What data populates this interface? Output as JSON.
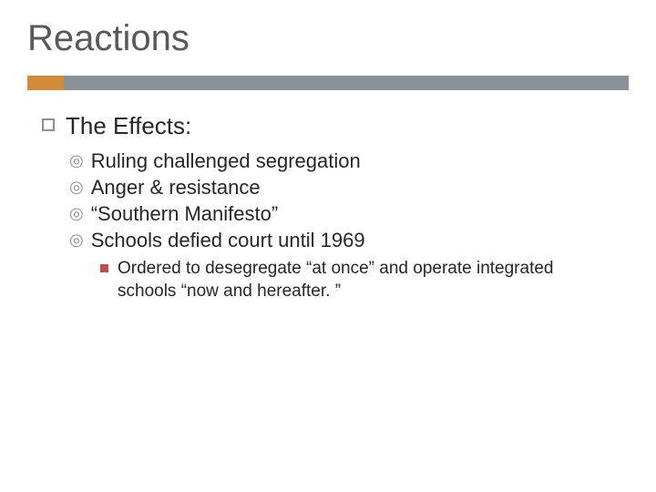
{
  "slide": {
    "title": "Reactions",
    "colors": {
      "accent_orange": "#d38b3a",
      "accent_gray": "#8a9299",
      "title_color": "#595959",
      "text_color": "#262626",
      "level3_bullet": "#c0504d",
      "background": "#ffffff"
    },
    "typography": {
      "title_fontsize": 40,
      "level1_fontsize": 26,
      "level2_fontsize": 22,
      "level3_fontsize": 19,
      "font_family": "Arial"
    },
    "content": {
      "level1": {
        "text": "The Effects:"
      },
      "level2": [
        {
          "text": "Ruling challenged segregation"
        },
        {
          "text": "Anger & resistance"
        },
        {
          "text": "“Southern Manifesto”"
        },
        {
          "text": "Schools defied court until 1969"
        }
      ],
      "level3": [
        {
          "text": "Ordered to desegregate “at once” and operate integrated schools “now and hereafter. ”"
        }
      ]
    }
  }
}
